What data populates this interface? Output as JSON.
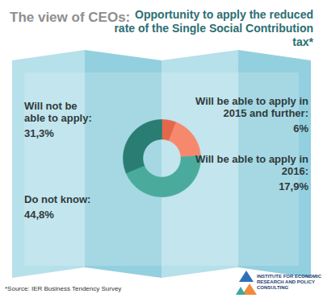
{
  "chart_data": {
    "type": "pie",
    "subtitle": "The view of CEOs:",
    "title": "Opportunity to apply the reduced rate of the Single Social Contribution tax*",
    "categories": [
      "Will be able to apply in 2015 and further:",
      "Will be able to apply in 2016:",
      "Do not know:",
      "Will not be able to apply:"
    ],
    "values": [
      6,
      17.9,
      44.8,
      31.3
    ],
    "value_labels": [
      "6%",
      "17,9%",
      "44,8%",
      "31,3%"
    ],
    "colors": [
      "#e4674c",
      "#f6896d",
      "#4aab9d",
      "#2a7d72"
    ],
    "data_labels": true,
    "caption": "*Source: IER Business Tendency Survey",
    "annotations": [
      "INSTITUTE FOR ECONOMIC RESEARCH AND POLICY CONSULTING"
    ]
  }
}
